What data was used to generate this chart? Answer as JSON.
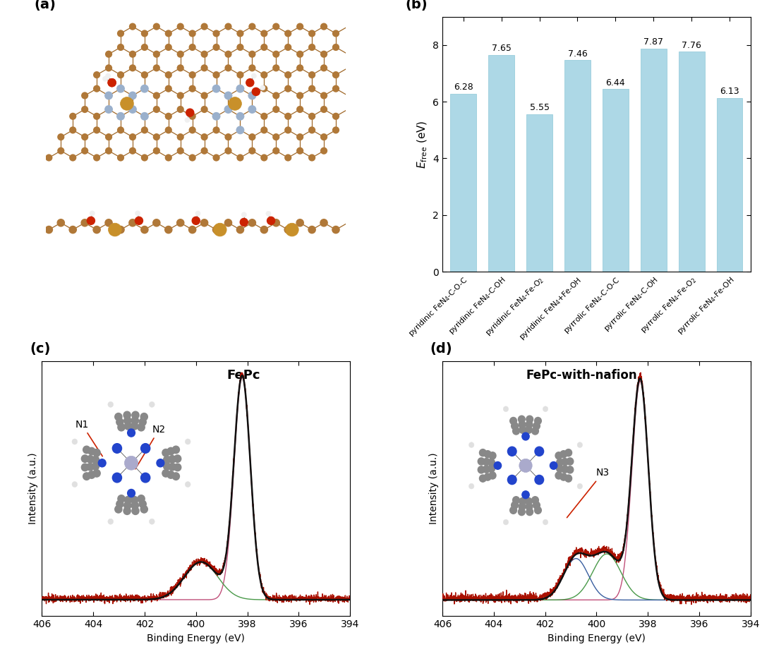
{
  "bar_categories": [
    "pyridinic FeN$_4$-C-O-C",
    "pyridinic FeN$_4$-C-OH",
    "pyridinic FeN$_4$-Fe-O$_2$",
    "pyridinic FeN$_4$+Fe-OH",
    "pyrrolic FeN$_4$-C-O-C",
    "pyrrolic FeN$_4$-C-OH",
    "pyrrolic FeN$_4$-Fe-O$_2$",
    "pyrrolic FeN$_4$-Fe-OH"
  ],
  "bar_values": [
    6.28,
    7.65,
    5.55,
    7.46,
    6.44,
    7.87,
    7.76,
    6.13
  ],
  "bar_color_top": "#b8e8f0",
  "bar_color_bottom": "#d8f4f8",
  "ylabel_b": "$E_{\\mathrm{free}}$ (eV)",
  "ylim_b": [
    0,
    9
  ],
  "yticks_b": [
    0,
    2,
    4,
    6,
    8
  ],
  "panel_labels": [
    "(a)",
    "(b)",
    "(c)",
    "(d)"
  ],
  "xps_xlabel": "Binding Energy (eV)",
  "xps_ylabel": "Intensity (a.u.)",
  "label_c": "FePc",
  "label_d": "FePc-with-nafion",
  "color_black": "#111111",
  "color_darkred": "#aa1100",
  "color_pink": "#c0507a",
  "color_green": "#4a9a4a",
  "color_blue": "#3a5fa0",
  "peak_c_main": 398.2,
  "peak_c_main_sigma": 0.32,
  "peak_c_main_amp": 1.0,
  "peak_c_second": 399.8,
  "peak_c_second_sigma": 0.65,
  "peak_c_second_amp": 0.17,
  "peak_d_main": 398.3,
  "peak_d_main_sigma": 0.32,
  "peak_d_main_amp": 0.95,
  "peak_d_green": 399.6,
  "peak_d_green_sigma": 0.55,
  "peak_d_green_amp": 0.2,
  "peak_d_blue": 400.8,
  "peak_d_blue_sigma": 0.48,
  "peak_d_blue_amp": 0.18
}
